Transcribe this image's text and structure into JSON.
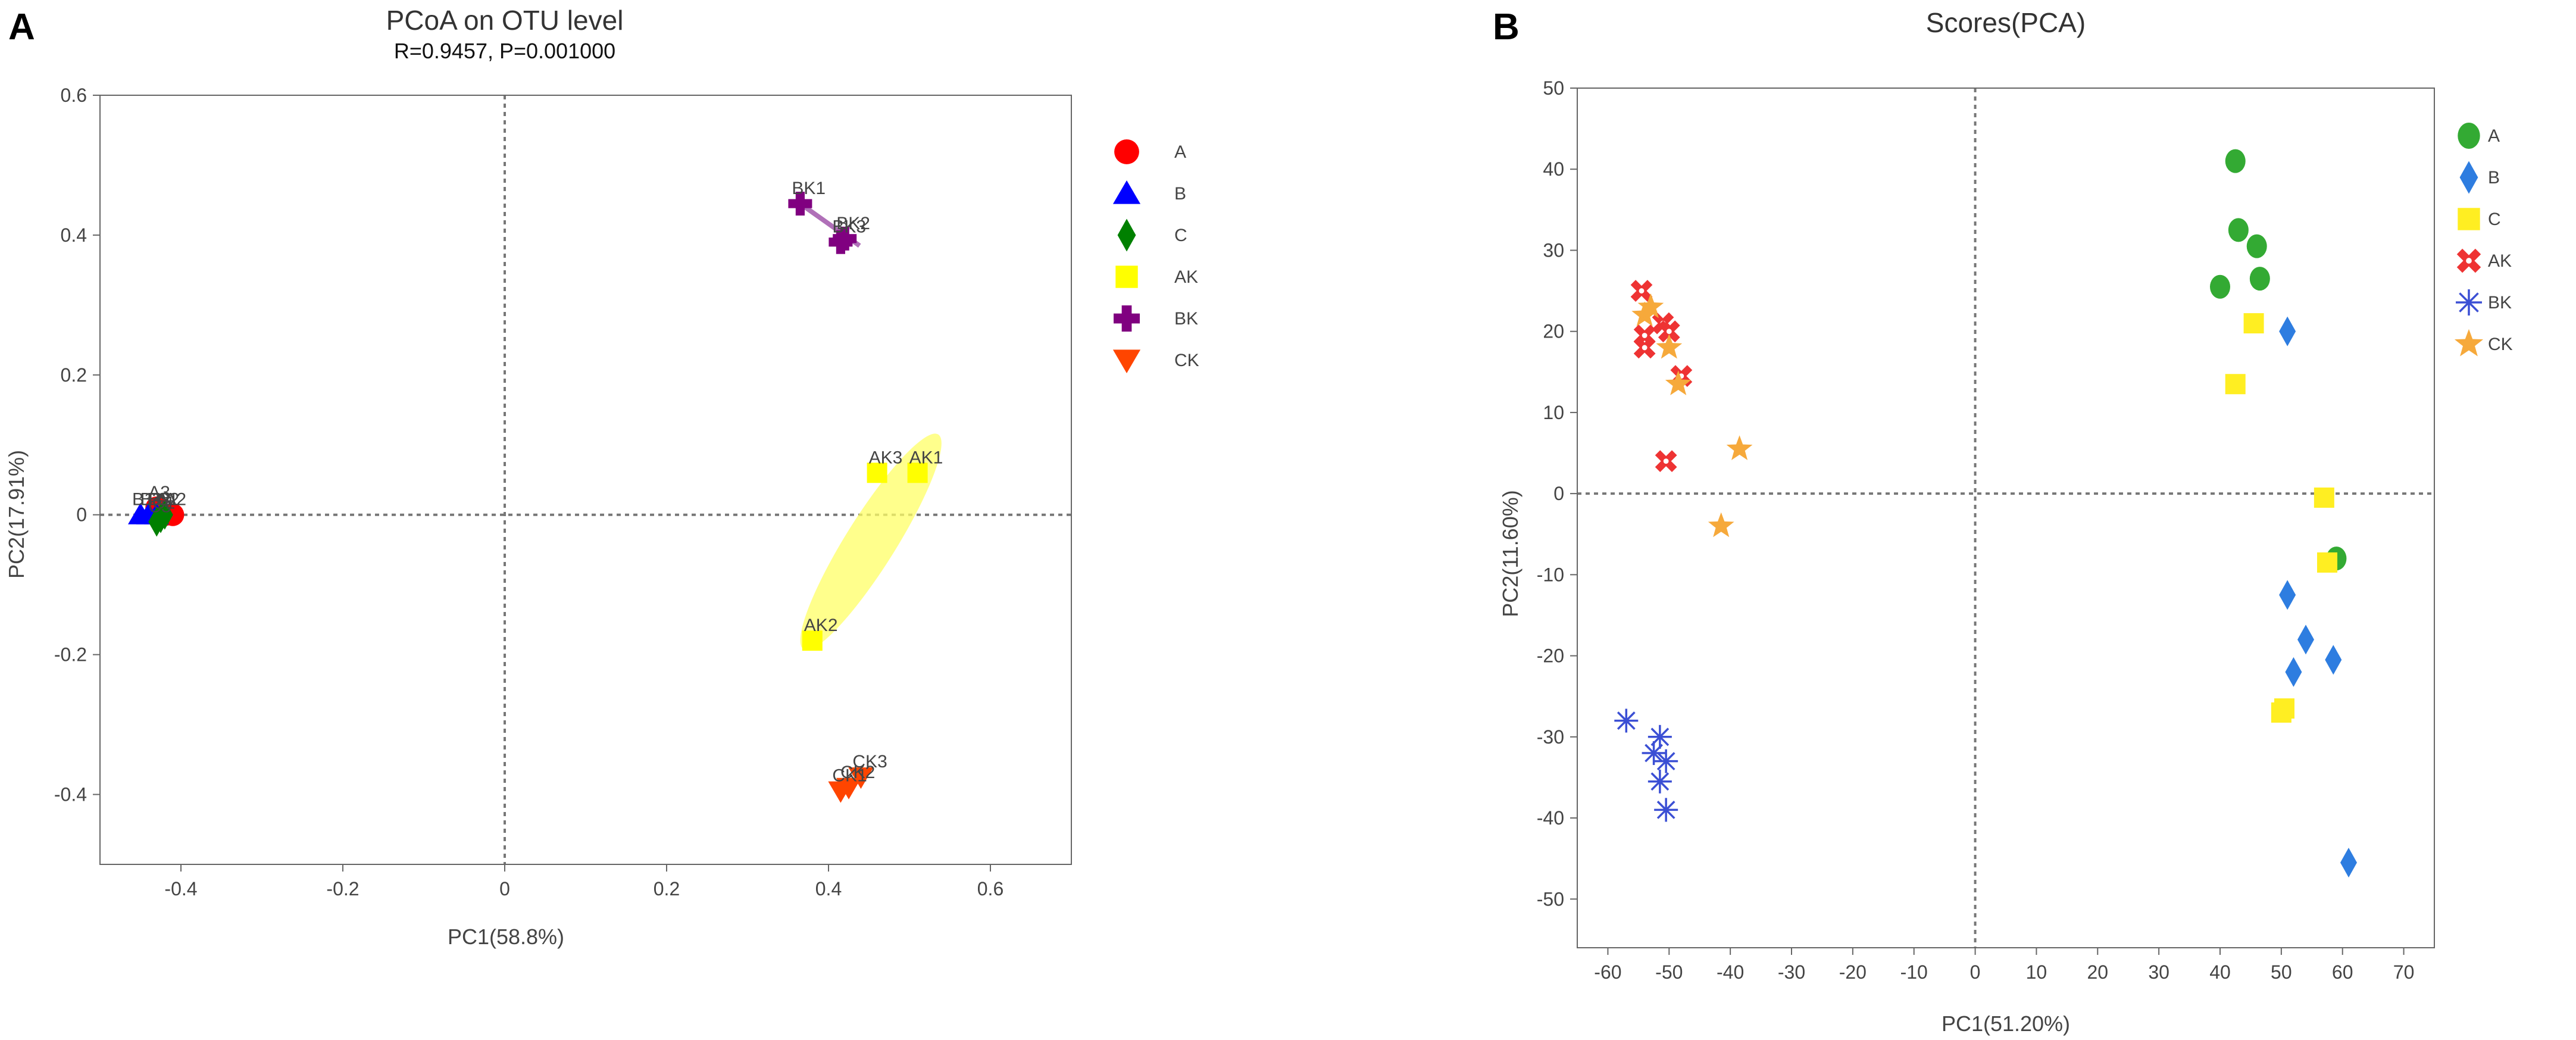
{
  "chart_data": [
    {
      "panel": "A",
      "type": "scatter",
      "title": "PCoA on OTU level",
      "subtitle": "R=0.9457, P=0.001000",
      "xlabel": "PC1(58.8%)",
      "ylabel": "PC2(17.91%)",
      "xlim": [
        -0.5,
        0.7
      ],
      "ylim": [
        -0.5,
        0.6
      ],
      "xticks": [
        -0.4,
        -0.2,
        0,
        0.2,
        0.4,
        0.6
      ],
      "xtick_labels": [
        "-0.4",
        "-0.2",
        "0",
        "0.2",
        "0.4",
        "0.6"
      ],
      "yticks": [
        -0.4,
        -0.2,
        0,
        0.2,
        0.4,
        0.6
      ],
      "ytick_labels": [
        "-0.4",
        "-0.2",
        "0",
        "0.2",
        "0.4",
        "0.6"
      ],
      "legend_position": "right",
      "series": [
        {
          "name": "A",
          "marker": "circle",
          "color": "#ff0000",
          "points": [
            {
              "x": -0.41,
              "y": 0.0,
              "label": "A2"
            },
            {
              "x": -0.42,
              "y": 0.0,
              "label": "A1"
            },
            {
              "x": -0.43,
              "y": 0.01,
              "label": "A3"
            }
          ]
        },
        {
          "name": "B",
          "marker": "triangle-up",
          "color": "#0000ff",
          "points": [
            {
              "x": -0.45,
              "y": 0.0,
              "label": "B1"
            },
            {
              "x": -0.43,
              "y": 0.0,
              "label": "B2"
            },
            {
              "x": -0.44,
              "y": 0.0,
              "label": "B3"
            }
          ]
        },
        {
          "name": "C",
          "marker": "diamond",
          "color": "#008000",
          "points": [
            {
              "x": -0.425,
              "y": -0.005,
              "label": "C1"
            },
            {
              "x": -0.42,
              "y": 0.0,
              "label": "C2"
            },
            {
              "x": -0.43,
              "y": -0.01,
              "label": "C3"
            }
          ]
        },
        {
          "name": "AK",
          "marker": "square",
          "color": "#ffff00",
          "points": [
            {
              "x": 0.51,
              "y": 0.06,
              "label": "AK1"
            },
            {
              "x": 0.38,
              "y": -0.18,
              "label": "AK2"
            },
            {
              "x": 0.46,
              "y": 0.06,
              "label": "AK3"
            }
          ]
        },
        {
          "name": "BK",
          "marker": "cross",
          "color": "#800080",
          "points": [
            {
              "x": 0.365,
              "y": 0.445,
              "label": "BK1"
            },
            {
              "x": 0.42,
              "y": 0.395,
              "label": "BK2"
            },
            {
              "x": 0.415,
              "y": 0.39,
              "label": "BK3"
            }
          ]
        },
        {
          "name": "CK",
          "marker": "triangle-down",
          "color": "#ff4500",
          "points": [
            {
              "x": 0.415,
              "y": -0.395,
              "label": "CK1"
            },
            {
              "x": 0.425,
              "y": -0.39,
              "label": "CK2"
            },
            {
              "x": 0.44,
              "y": -0.375,
              "label": "CK3"
            }
          ]
        }
      ]
    },
    {
      "panel": "B",
      "type": "scatter",
      "title": "Scores(PCA)",
      "xlabel": "PC1(51.20%)",
      "ylabel": "PC2(11.60%)",
      "xlim": [
        -65,
        75
      ],
      "ylim": [
        -56,
        50
      ],
      "xticks": [
        -60,
        -50,
        -40,
        -30,
        -20,
        -10,
        0,
        10,
        20,
        30,
        40,
        50,
        60,
        70
      ],
      "xtick_labels": [
        "-60",
        "-50",
        "-40",
        "-30",
        "-20",
        "-10",
        "0",
        "10",
        "20",
        "30",
        "40",
        "50",
        "60",
        "70"
      ],
      "yticks": [
        -50,
        -40,
        -30,
        -20,
        -10,
        0,
        10,
        20,
        30,
        40,
        50
      ],
      "ytick_labels": [
        "-50",
        "-40",
        "-30",
        "-20",
        "-10",
        "0",
        "10",
        "20",
        "30",
        "40",
        "50"
      ],
      "legend_position": "right",
      "series": [
        {
          "name": "A",
          "marker": "ellipse",
          "color": "#33aa33",
          "points": [
            {
              "x": 42.5,
              "y": 41
            },
            {
              "x": 43,
              "y": 32.5
            },
            {
              "x": 46,
              "y": 30.5
            },
            {
              "x": 40,
              "y": 25.5
            },
            {
              "x": 46.5,
              "y": 26.5
            },
            {
              "x": 59,
              "y": -8
            }
          ]
        },
        {
          "name": "B",
          "marker": "diamond",
          "color": "#2e7de0",
          "points": [
            {
              "x": 51,
              "y": 20
            },
            {
              "x": 51,
              "y": -12.5
            },
            {
              "x": 54,
              "y": -18
            },
            {
              "x": 52,
              "y": -22
            },
            {
              "x": 58.5,
              "y": -20.5
            },
            {
              "x": 61,
              "y": -45.5
            }
          ]
        },
        {
          "name": "C",
          "marker": "square",
          "color": "#ffee22",
          "points": [
            {
              "x": 45.5,
              "y": 21
            },
            {
              "x": 42.5,
              "y": 13.5
            },
            {
              "x": 57,
              "y": -0.5
            },
            {
              "x": 57.5,
              "y": -8.5
            },
            {
              "x": 50,
              "y": -27
            },
            {
              "x": 50.5,
              "y": -26.5
            }
          ]
        },
        {
          "name": "AK",
          "marker": "x-cross",
          "color": "#ee3333",
          "points": [
            {
              "x": -54.5,
              "y": 25
            },
            {
              "x": -54,
              "y": 18
            },
            {
              "x": -54,
              "y": 19.5
            },
            {
              "x": -51,
              "y": 21
            },
            {
              "x": -50,
              "y": 20
            },
            {
              "x": -48,
              "y": 14.5
            },
            {
              "x": -50.5,
              "y": 4
            }
          ]
        },
        {
          "name": "BK",
          "marker": "asterisk",
          "color": "#3b4fd4",
          "points": [
            {
              "x": -57,
              "y": -28
            },
            {
              "x": -52.5,
              "y": -32
            },
            {
              "x": -51.5,
              "y": -30
            },
            {
              "x": -50.5,
              "y": -33
            },
            {
              "x": -51.5,
              "y": -35.5
            },
            {
              "x": -50.5,
              "y": -39
            }
          ]
        },
        {
          "name": "CK",
          "marker": "star",
          "color": "#f6a93b",
          "points": [
            {
              "x": -54,
              "y": 22
            },
            {
              "x": -53,
              "y": 23
            },
            {
              "x": -50,
              "y": 18
            },
            {
              "x": -48.5,
              "y": 13.5
            },
            {
              "x": -38.5,
              "y": 5.5
            },
            {
              "x": -41.5,
              "y": -4
            }
          ]
        }
      ]
    }
  ]
}
